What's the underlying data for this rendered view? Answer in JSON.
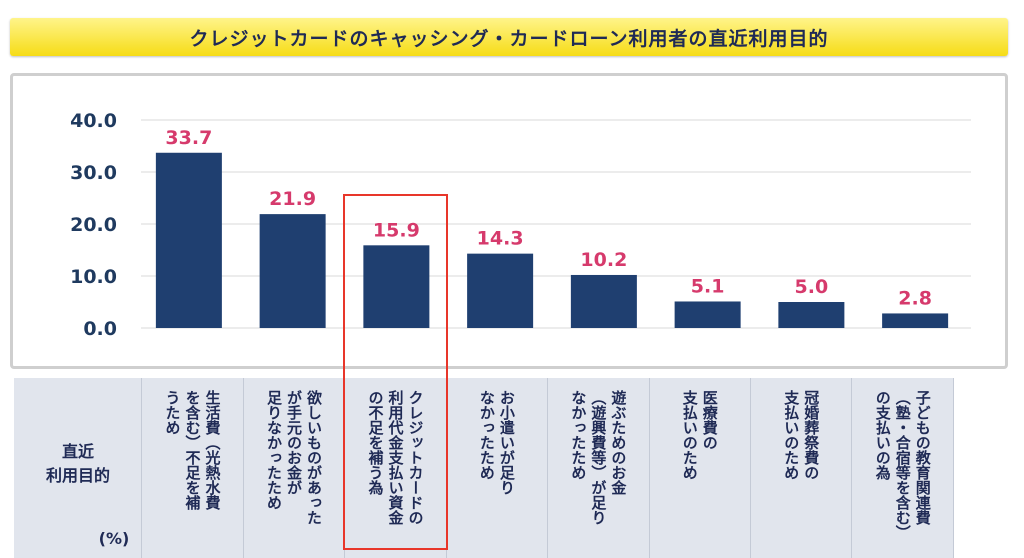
{
  "title": "クレジットカードのキャッシング・カードローン利用者の直近利用目的",
  "table": {
    "header_label": "直近\n利用目的",
    "unit": "(%)"
  },
  "chart_data": {
    "type": "bar",
    "categories": [
      "生活費（光熱水費\nを含む）不足を補\nうため",
      "欲しいものがあった\nが手元のお金が\n足りなかったため",
      "クレジットカードの\n利用代金支払い資金\nの不足を補う為",
      "お小遣いが足り\nなかったため",
      "遊ぶためのお金\n（遊興費等）が足り\nなかったため",
      "医療費の\n支払いのため",
      "冠婚葬祭費の\n支払いのため",
      "子どもの教育関連費\n（塾・合宿等を含む）\nの支払いの為"
    ],
    "values": [
      33.7,
      21.9,
      15.9,
      14.3,
      10.2,
      5.1,
      5.0,
      2.8
    ],
    "value_labels": [
      "33.7",
      "21.9",
      "15.9",
      "14.3",
      "10.2",
      "5.1",
      "5.0",
      "2.8"
    ],
    "yticks": [
      "0.0",
      "10.0",
      "20.0",
      "30.0",
      "40.0"
    ],
    "ylim": [
      0,
      40
    ],
    "grid": true,
    "highlighted_index": 2,
    "colors": {
      "bar": "#1f3f70",
      "value_label": "#d63a6c",
      "highlight": "#e8362a"
    }
  }
}
